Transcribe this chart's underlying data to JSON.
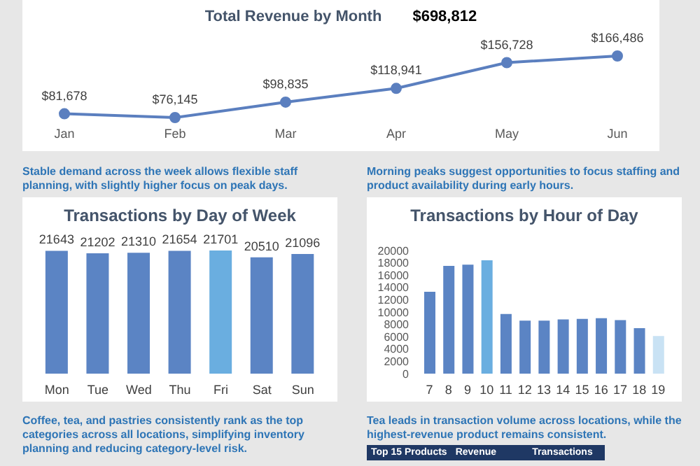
{
  "chart_data": [
    {
      "type": "line",
      "title": "Total Revenue by Month",
      "annotations": [
        "$698,812"
      ],
      "categories": [
        "Jan",
        "Feb",
        "Mar",
        "Apr",
        "May",
        "Jun"
      ],
      "series": [
        {
          "color": "#5b7fbf",
          "values": [
            81678,
            76145,
            98835,
            118941,
            156728,
            166486
          ],
          "value_labels": [
            "$81,678",
            "$76,145",
            "$98,835",
            "$118,941",
            "$156,728",
            "$166,486"
          ]
        }
      ],
      "marker": "circle",
      "line_style": "solid",
      "grid": false,
      "legend": false,
      "tick_labels": "x"
    },
    {
      "type": "bar",
      "subtitle": "Stable demand across the week allows flexible staff planning, with slightly higher focus on peak days.",
      "title": "Transactions by Day of Week",
      "categories": [
        "Mon",
        "Tue",
        "Wed",
        "Thu",
        "Fri",
        "Sat",
        "Sun"
      ],
      "values": [
        21643,
        21202,
        21310,
        21654,
        21701,
        20510,
        21096
      ],
      "colors": [
        "#5b84c4",
        "#5b84c4",
        "#5b84c4",
        "#5b84c4",
        "#6aaee0",
        "#5b84c4",
        "#5b84c4"
      ],
      "data_labels": true,
      "grid": false,
      "legend": false,
      "tick_labels": "x"
    },
    {
      "type": "bar",
      "subtitle": "Morning peaks suggest opportunities to focus staffing and product availability during early hours.",
      "title": "Transactions by Hour of Day",
      "categories": [
        "7",
        "8",
        "9",
        "10",
        "11",
        "12",
        "13",
        "14",
        "15",
        "16",
        "17",
        "18",
        "19"
      ],
      "values": [
        13300,
        17500,
        17700,
        18400,
        9700,
        8600,
        8600,
        8800,
        8900,
        9000,
        8700,
        7400,
        6100
      ],
      "colors": [
        "#5b84c4",
        "#5b84c4",
        "#5b84c4",
        "#6aaee0",
        "#5b84c4",
        "#5b84c4",
        "#5b84c4",
        "#5b84c4",
        "#5b84c4",
        "#5b84c4",
        "#5b84c4",
        "#5b84c4",
        "#c9e2f4"
      ],
      "ylim": [
        0,
        20000
      ],
      "yticks": [
        0,
        2000,
        4000,
        6000,
        8000,
        10000,
        12000,
        14000,
        16000,
        18000,
        20000
      ],
      "grid": false,
      "legend": false
    },
    {
      "type": "other",
      "annotations": [
        "Coffee, tea, and pastries consistently rank as the top categories across all locations, simplifying inventory planning and reducing category-level risk.",
        "Tea leads in transaction volume across locations, while the highest-revenue product remains consistent.",
        "Top 15 Products",
        "Revenue",
        "Transactions"
      ]
    }
  ]
}
